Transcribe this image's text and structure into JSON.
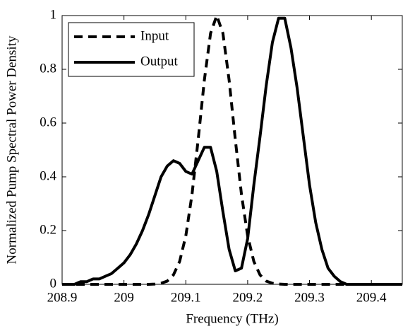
{
  "chart_data": {
    "type": "line",
    "xlabel": "Frequency (THz)",
    "ylabel": "Normalized Pump Spectral Power Density",
    "x": [
      208.9,
      208.91,
      208.92,
      208.93,
      208.94,
      208.95,
      208.96,
      208.97,
      208.98,
      208.99,
      209.0,
      209.01,
      209.02,
      209.03,
      209.04,
      209.05,
      209.06,
      209.07,
      209.08,
      209.09,
      209.1,
      209.11,
      209.12,
      209.13,
      209.14,
      209.15,
      209.16,
      209.17,
      209.18,
      209.19,
      209.2,
      209.21,
      209.22,
      209.23,
      209.24,
      209.25,
      209.26,
      209.27,
      209.28,
      209.29,
      209.3,
      209.31,
      209.32,
      209.33,
      209.34,
      209.35,
      209.36,
      209.37,
      209.38,
      209.39,
      209.4,
      209.41,
      209.42,
      209.43,
      209.44,
      209.45
    ],
    "series": [
      {
        "name": "Input",
        "color": "#000000",
        "style": "dashed",
        "values": [
          0,
          0,
          0,
          0,
          0,
          0,
          0,
          0,
          0,
          0,
          0,
          0,
          0,
          0,
          0,
          0.001,
          0.004,
          0.012,
          0.035,
          0.085,
          0.18,
          0.334,
          0.539,
          0.76,
          0.934,
          1,
          0.934,
          0.76,
          0.539,
          0.334,
          0.18,
          0.085,
          0.035,
          0.012,
          0.004,
          0.001,
          0,
          0,
          0,
          0,
          0,
          0,
          0,
          0,
          0,
          0,
          0,
          0,
          0,
          0,
          0,
          0,
          0,
          0,
          0,
          0
        ]
      },
      {
        "name": "Output",
        "color": "#000000",
        "style": "solid",
        "values": [
          0,
          0,
          0,
          0.01,
          0.01,
          0.02,
          0.02,
          0.03,
          0.04,
          0.06,
          0.08,
          0.11,
          0.15,
          0.2,
          0.26,
          0.33,
          0.4,
          0.44,
          0.46,
          0.45,
          0.42,
          0.41,
          0.46,
          0.51,
          0.51,
          0.42,
          0.27,
          0.13,
          0.05,
          0.06,
          0.17,
          0.37,
          0.55,
          0.74,
          0.9,
          0.99,
          0.99,
          0.88,
          0.73,
          0.55,
          0.37,
          0.23,
          0.13,
          0.06,
          0.03,
          0.01,
          0,
          0,
          0,
          0,
          0,
          0,
          0,
          0,
          0,
          0
        ]
      }
    ],
    "xlim": [
      208.9,
      209.45
    ],
    "ylim": [
      0,
      1
    ],
    "xticks": [
      208.9,
      209,
      209.1,
      209.2,
      209.3,
      209.4
    ],
    "yticks": [
      0,
      0.2,
      0.4,
      0.6,
      0.8,
      1
    ],
    "legend": "upper left"
  }
}
